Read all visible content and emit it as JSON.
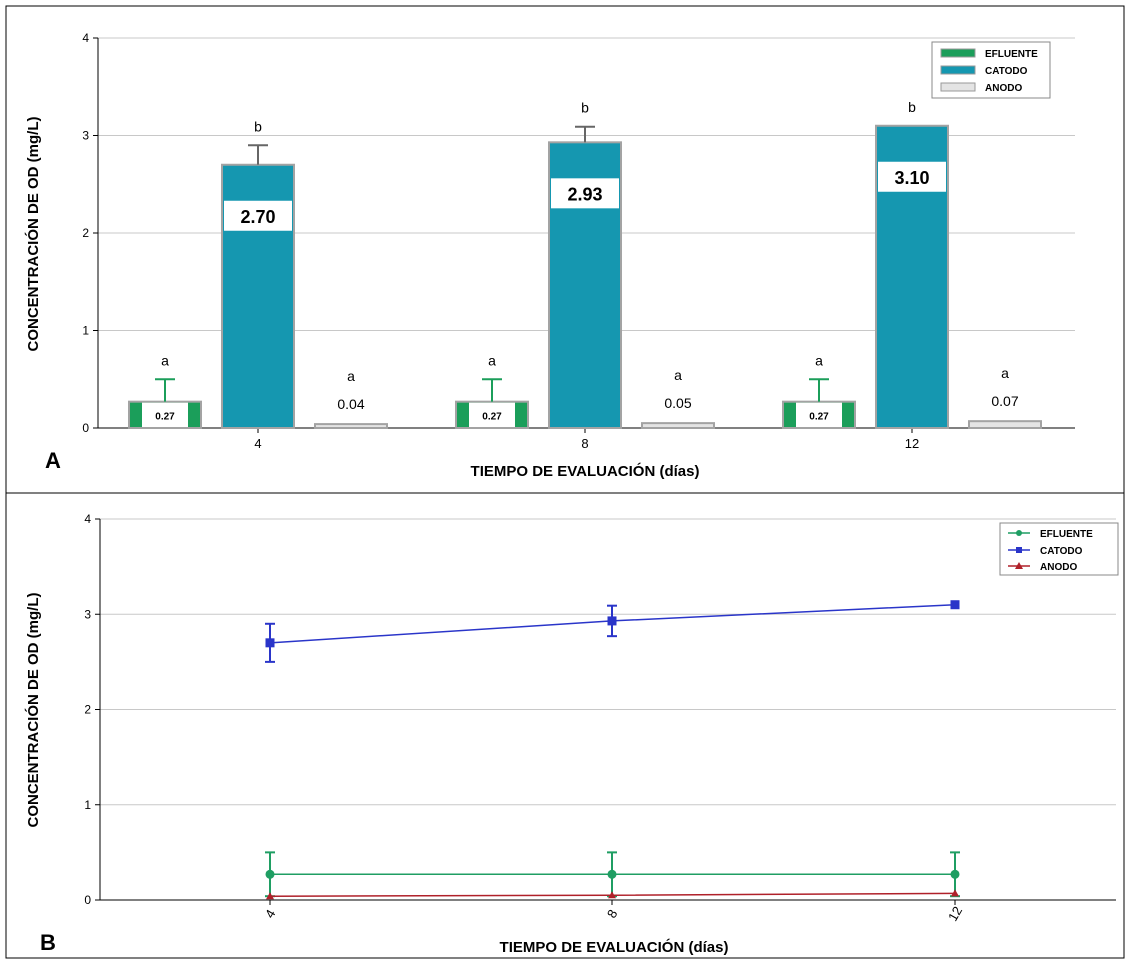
{
  "colors": {
    "efluente": "#1b9e5a",
    "catodo_bar": "#1597b0",
    "anodo_bar": "#e4e4e4",
    "catodo_line": "#2a35c9",
    "anodo_line": "#b0212a",
    "efluente_line": "#1f9e63",
    "bar_border": "#a3a3a3",
    "grid": "#c8c8c8"
  },
  "chart_data": [
    {
      "panel": "A",
      "type": "bar",
      "categories": [
        "4",
        "8",
        "12"
      ],
      "series": [
        {
          "name": "EFLUENTE",
          "values": [
            0.27,
            0.27,
            0.27
          ],
          "err": [
            0.23,
            0.23,
            0.23
          ],
          "labels": [
            "0.27",
            "0.27",
            "0.27"
          ],
          "letters": [
            "a",
            "a",
            "a"
          ]
        },
        {
          "name": "CATODO",
          "values": [
            2.7,
            2.93,
            3.1
          ],
          "err": [
            0.2,
            0.16,
            0.0
          ],
          "labels": [
            "2.70",
            "2.93",
            "3.10"
          ],
          "letters": [
            "b",
            "b",
            "b"
          ]
        },
        {
          "name": "ANODO",
          "values": [
            0.04,
            0.05,
            0.07
          ],
          "err": [
            0,
            0,
            0
          ],
          "labels": [
            "0.04",
            "0.05",
            "0.07"
          ],
          "letters": [
            "a",
            "a",
            "a"
          ]
        }
      ],
      "yticks": [
        "0",
        "1",
        "2",
        "3",
        "4"
      ],
      "ylim": [
        0,
        4
      ],
      "xlabel": "TIEMPO DE EVALUACIÓN (días)",
      "ylabel": "CONCENTRACIÓN DE OD (mg/L)",
      "grid": true,
      "legend": "top-right"
    },
    {
      "panel": "B",
      "type": "line",
      "x": [
        "4",
        "8",
        "12"
      ],
      "series": [
        {
          "name": "EFLUENTE",
          "values": [
            0.27,
            0.27,
            0.27
          ],
          "err": [
            0.23,
            0.23,
            0.23
          ],
          "marker": "circle"
        },
        {
          "name": "CATODO",
          "values": [
            2.7,
            2.93,
            3.1
          ],
          "err": [
            0.2,
            0.16,
            0.0
          ],
          "marker": "square"
        },
        {
          "name": "ANODO",
          "values": [
            0.04,
            0.05,
            0.07
          ],
          "err": [
            0,
            0,
            0
          ],
          "marker": "triangle"
        }
      ],
      "yticks": [
        "0",
        "1",
        "2",
        "3",
        "4"
      ],
      "ylim": [
        0,
        4
      ],
      "xlabel": "TIEMPO DE EVALUACIÓN (días)",
      "ylabel": "CONCENTRACIÓN DE OD (mg/L)",
      "grid": true,
      "legend": "top-right"
    }
  ]
}
